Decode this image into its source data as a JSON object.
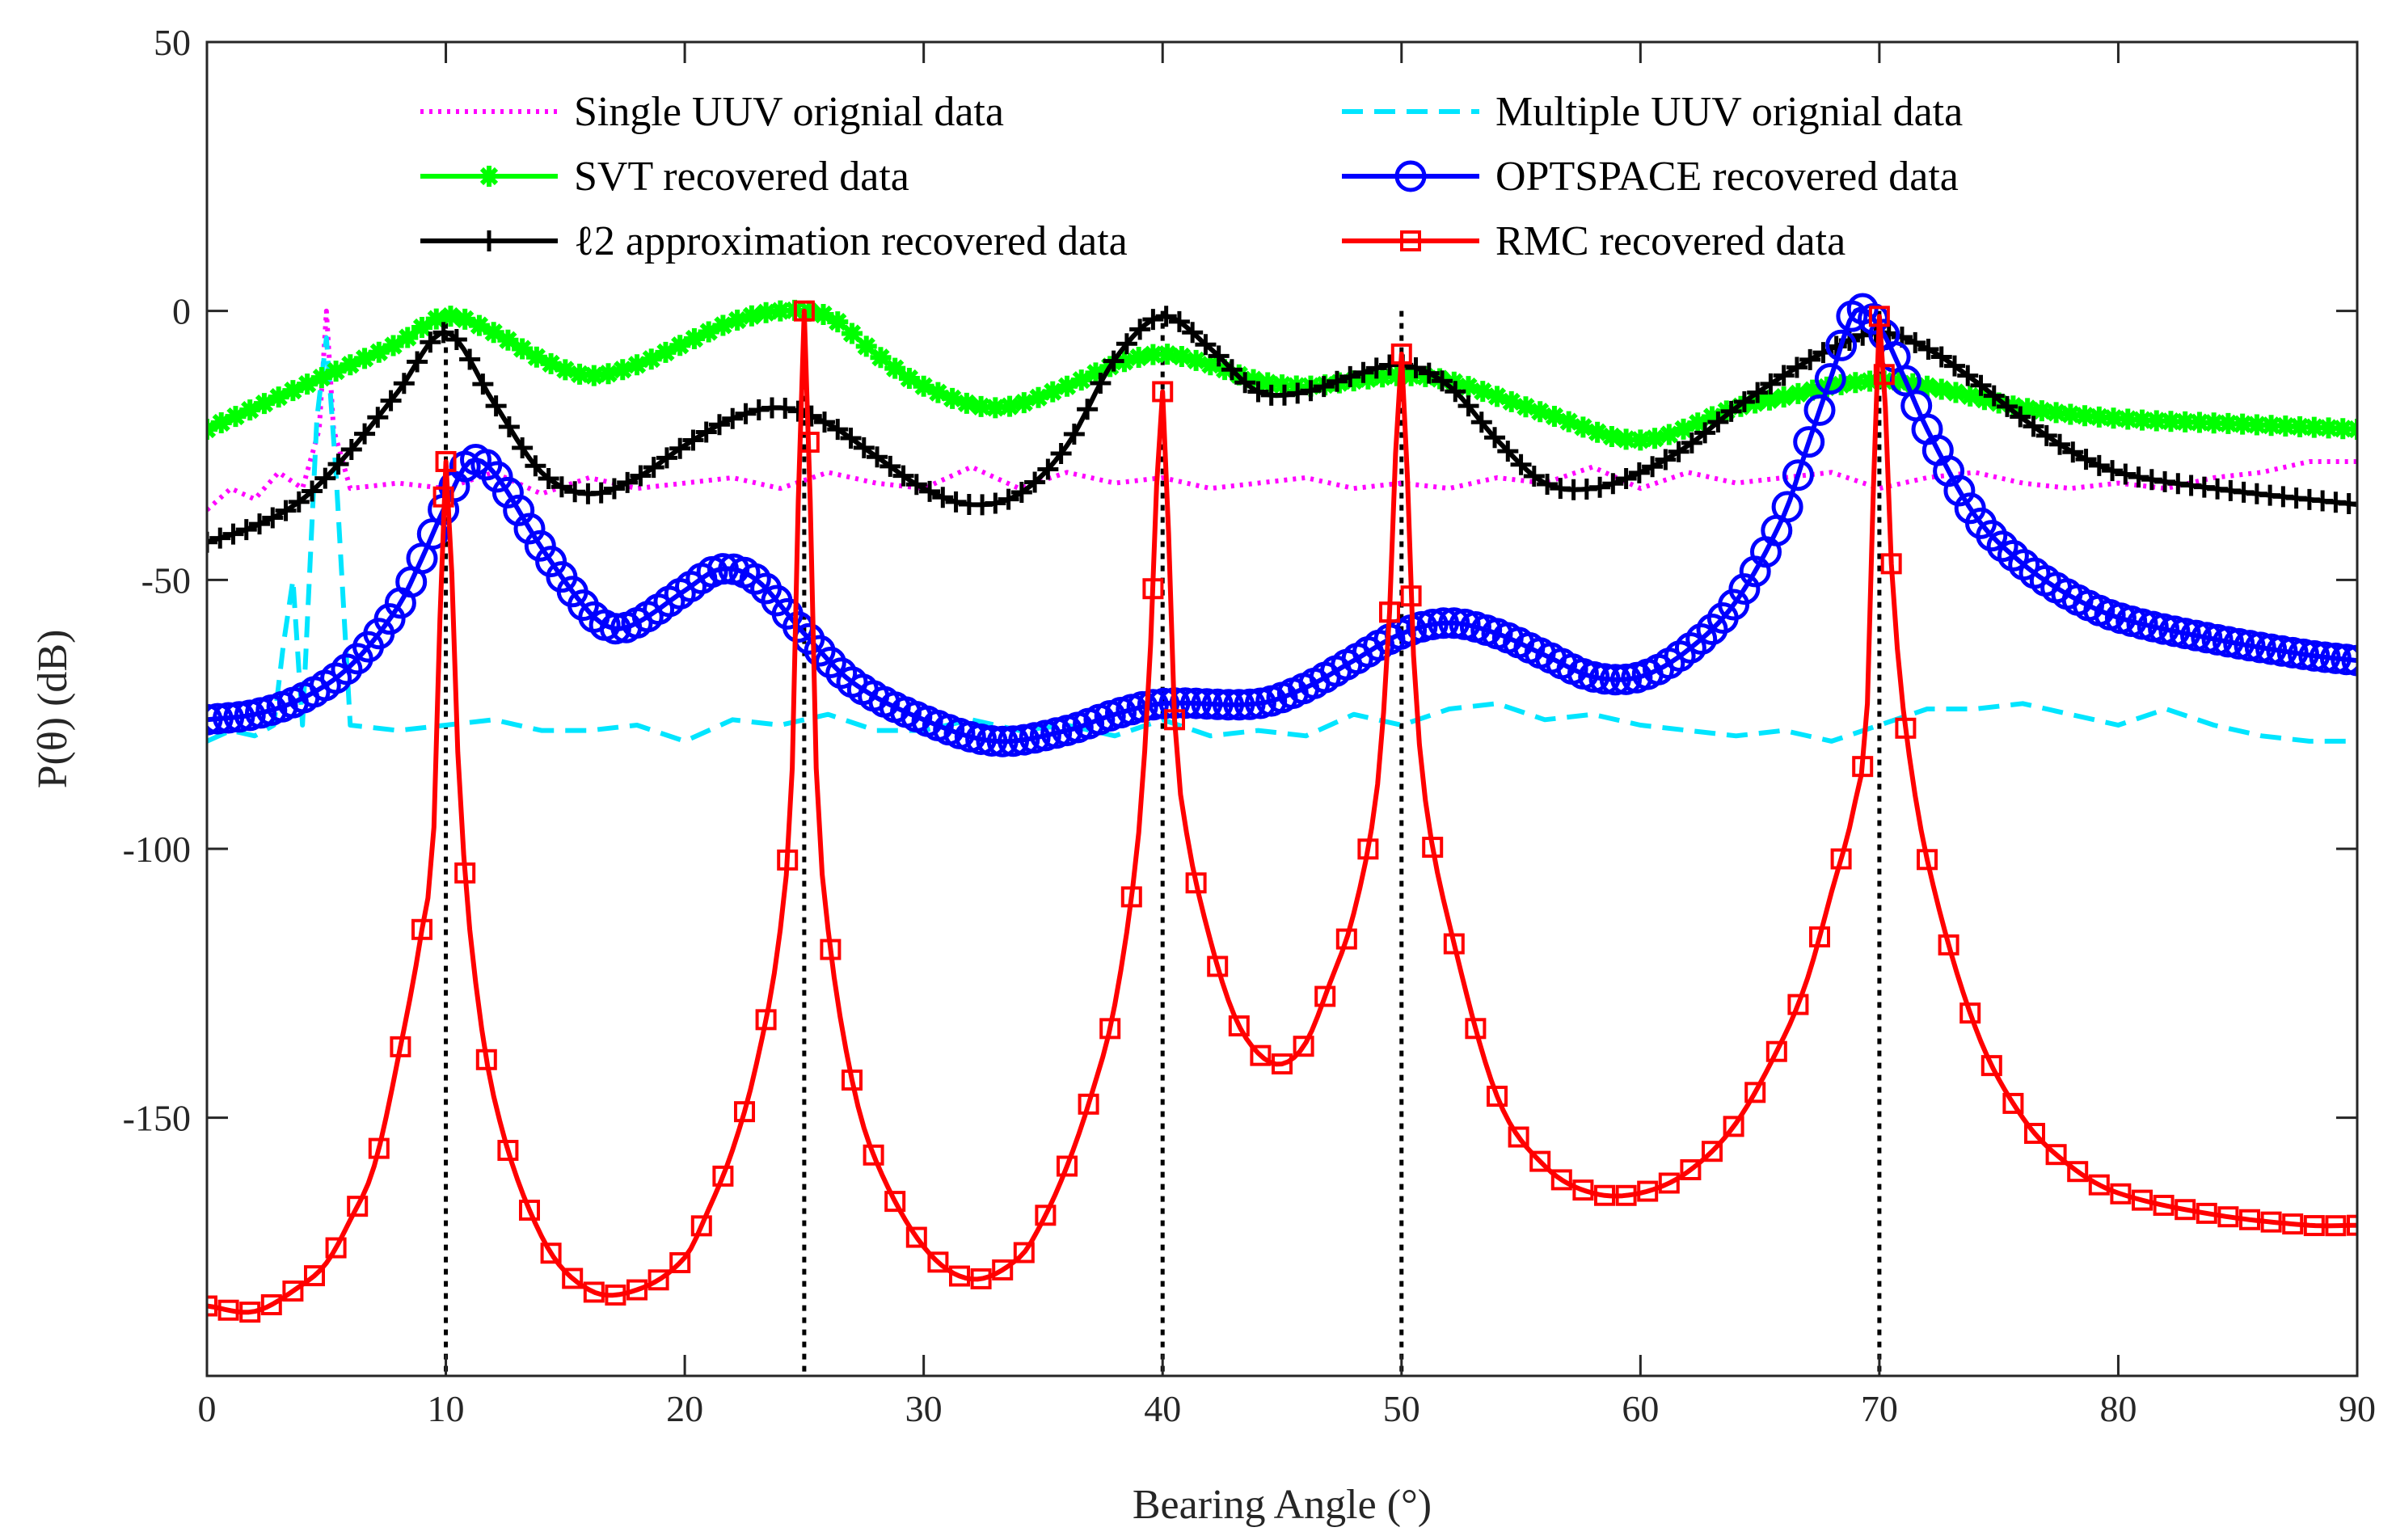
{
  "chart_data": {
    "type": "line",
    "xlabel": "Bearing Angle (°)",
    "ylabel": "P(θ) (dB)",
    "xlim": [
      0,
      90
    ],
    "ylim": [
      -198,
      50
    ],
    "xticks": [
      0,
      10,
      20,
      30,
      40,
      50,
      60,
      70,
      80,
      90
    ],
    "yticks": [
      50,
      0,
      -50,
      -100,
      -150
    ],
    "ytick_labels": [
      "50",
      "0",
      "-50",
      "-100",
      "-150"
    ],
    "grid": false,
    "legend_position": "top",
    "true_angles": [
      10,
      25,
      40,
      50,
      70
    ],
    "series": [
      {
        "name": "Single UUV orignial data",
        "color": "#ff00ff",
        "style": "dotted",
        "marker": "none",
        "points": [
          [
            0,
            -37
          ],
          [
            1,
            -33
          ],
          [
            2,
            -35
          ],
          [
            3,
            -30
          ],
          [
            4,
            -33
          ],
          [
            4.7,
            -22
          ],
          [
            5,
            0
          ],
          [
            5.3,
            -22
          ],
          [
            6,
            -33
          ],
          [
            8,
            -32
          ],
          [
            10,
            -33
          ],
          [
            12,
            -30
          ],
          [
            14,
            -34
          ],
          [
            16,
            -31
          ],
          [
            18,
            -33
          ],
          [
            20,
            -32
          ],
          [
            22,
            -31
          ],
          [
            24,
            -33
          ],
          [
            26,
            -30
          ],
          [
            28,
            -32
          ],
          [
            30,
            -33
          ],
          [
            32,
            -29
          ],
          [
            34,
            -33
          ],
          [
            36,
            -30
          ],
          [
            38,
            -32
          ],
          [
            40,
            -31
          ],
          [
            42,
            -33
          ],
          [
            44,
            -32
          ],
          [
            46,
            -31
          ],
          [
            48,
            -33
          ],
          [
            50,
            -32
          ],
          [
            52,
            -33
          ],
          [
            54,
            -31
          ],
          [
            56,
            -32
          ],
          [
            58,
            -29
          ],
          [
            60,
            -33
          ],
          [
            62,
            -30
          ],
          [
            64,
            -32
          ],
          [
            66,
            -31
          ],
          [
            68,
            -30
          ],
          [
            70,
            -33
          ],
          [
            72,
            -31
          ],
          [
            74,
            -30
          ],
          [
            76,
            -32
          ],
          [
            78,
            -33
          ],
          [
            80,
            -32
          ],
          [
            82,
            -33
          ],
          [
            84,
            -31
          ],
          [
            86,
            -30
          ],
          [
            88,
            -28
          ],
          [
            90,
            -28
          ]
        ]
      },
      {
        "name": "Multiple UUV orignial data",
        "color": "#00e5ff",
        "style": "dashed",
        "marker": "none",
        "points": [
          [
            0,
            -80
          ],
          [
            1,
            -78
          ],
          [
            2,
            -79
          ],
          [
            2.8,
            -77
          ],
          [
            3.2,
            -62
          ],
          [
            3.6,
            -50
          ],
          [
            4,
            -77
          ],
          [
            4.6,
            -20
          ],
          [
            5,
            -5
          ],
          [
            5.4,
            -30
          ],
          [
            6,
            -77
          ],
          [
            8,
            -78
          ],
          [
            10,
            -77
          ],
          [
            12,
            -76
          ],
          [
            14,
            -78
          ],
          [
            16,
            -78
          ],
          [
            18,
            -77
          ],
          [
            20,
            -80
          ],
          [
            22,
            -76
          ],
          [
            24,
            -77
          ],
          [
            26,
            -75
          ],
          [
            28,
            -78
          ],
          [
            30,
            -78
          ],
          [
            32,
            -76
          ],
          [
            34,
            -78
          ],
          [
            36,
            -77
          ],
          [
            38,
            -79
          ],
          [
            40,
            -76
          ],
          [
            42,
            -79
          ],
          [
            44,
            -78
          ],
          [
            46,
            -79
          ],
          [
            48,
            -75
          ],
          [
            50,
            -77
          ],
          [
            52,
            -74
          ],
          [
            54,
            -73
          ],
          [
            56,
            -76
          ],
          [
            58,
            -75
          ],
          [
            60,
            -77
          ],
          [
            62,
            -78
          ],
          [
            64,
            -79
          ],
          [
            66,
            -78
          ],
          [
            68,
            -80
          ],
          [
            70,
            -77
          ],
          [
            72,
            -74
          ],
          [
            74,
            -74
          ],
          [
            76,
            -73
          ],
          [
            78,
            -75
          ],
          [
            80,
            -77
          ],
          [
            82,
            -74
          ],
          [
            84,
            -77
          ],
          [
            86,
            -79
          ],
          [
            88,
            -80
          ],
          [
            90,
            -80
          ]
        ]
      },
      {
        "name": "SVT recovered data",
        "color": "#00ff00",
        "style": "solid",
        "marker": "star",
        "points": [
          [
            0,
            -22
          ],
          [
            2,
            -18
          ],
          [
            4,
            -14
          ],
          [
            6,
            -10
          ],
          [
            8,
            -6
          ],
          [
            10,
            -1
          ],
          [
            12,
            -4
          ],
          [
            14,
            -9
          ],
          [
            16,
            -12
          ],
          [
            18,
            -10
          ],
          [
            20,
            -6
          ],
          [
            22,
            -2
          ],
          [
            24,
            0
          ],
          [
            26,
            -1
          ],
          [
            28,
            -8
          ],
          [
            30,
            -14
          ],
          [
            33,
            -18
          ],
          [
            36,
            -14
          ],
          [
            38,
            -10
          ],
          [
            40,
            -8
          ],
          [
            42,
            -10
          ],
          [
            44,
            -13
          ],
          [
            46,
            -14
          ],
          [
            48,
            -13
          ],
          [
            50,
            -12
          ],
          [
            52,
            -13
          ],
          [
            56,
            -19
          ],
          [
            60,
            -24
          ],
          [
            64,
            -18
          ],
          [
            66,
            -16
          ],
          [
            68,
            -14
          ],
          [
            70,
            -13
          ],
          [
            72,
            -14
          ],
          [
            76,
            -18
          ],
          [
            80,
            -20
          ],
          [
            85,
            -21
          ],
          [
            90,
            -22
          ]
        ]
      },
      {
        "name": "ℓ2 approximation recovered data",
        "color": "#000000",
        "style": "solid",
        "marker": "plus",
        "points": [
          [
            0,
            -43
          ],
          [
            2,
            -40
          ],
          [
            4,
            -35
          ],
          [
            6,
            -26
          ],
          [
            8,
            -15
          ],
          [
            10,
            -4
          ],
          [
            12,
            -17
          ],
          [
            14,
            -30
          ],
          [
            16,
            -34
          ],
          [
            18,
            -31
          ],
          [
            20,
            -25
          ],
          [
            22,
            -20
          ],
          [
            24,
            -18
          ],
          [
            26,
            -21
          ],
          [
            28,
            -27
          ],
          [
            30,
            -33
          ],
          [
            32,
            -36
          ],
          [
            34,
            -34
          ],
          [
            36,
            -25
          ],
          [
            38,
            -9
          ],
          [
            40,
            -1
          ],
          [
            42,
            -7
          ],
          [
            44,
            -15
          ],
          [
            46,
            -15
          ],
          [
            48,
            -12
          ],
          [
            50,
            -10
          ],
          [
            52,
            -14
          ],
          [
            54,
            -24
          ],
          [
            56,
            -32
          ],
          [
            58,
            -33
          ],
          [
            60,
            -30
          ],
          [
            62,
            -25
          ],
          [
            64,
            -18
          ],
          [
            66,
            -12
          ],
          [
            68,
            -7
          ],
          [
            70,
            -4
          ],
          [
            72,
            -7
          ],
          [
            74,
            -13
          ],
          [
            76,
            -20
          ],
          [
            78,
            -26
          ],
          [
            80,
            -30
          ],
          [
            84,
            -33
          ],
          [
            90,
            -36
          ]
        ]
      },
      {
        "name": "OPTSPACE recovered data",
        "color": "#0000ff",
        "style": "solid",
        "marker": "circle",
        "points": [
          [
            0,
            -76
          ],
          [
            2,
            -75
          ],
          [
            4,
            -72
          ],
          [
            6,
            -66
          ],
          [
            8,
            -55
          ],
          [
            9,
            -46
          ],
          [
            10,
            -36
          ],
          [
            11,
            -28
          ],
          [
            12,
            -30
          ],
          [
            14,
            -44
          ],
          [
            16,
            -56
          ],
          [
            17,
            -59
          ],
          [
            18,
            -58
          ],
          [
            20,
            -52
          ],
          [
            21.5,
            -48
          ],
          [
            23,
            -50
          ],
          [
            25,
            -60
          ],
          [
            27,
            -69
          ],
          [
            30,
            -76
          ],
          [
            33,
            -80
          ],
          [
            36,
            -78
          ],
          [
            38,
            -75
          ],
          [
            40,
            -73
          ],
          [
            44,
            -73
          ],
          [
            46,
            -70
          ],
          [
            48,
            -65
          ],
          [
            50,
            -60
          ],
          [
            52,
            -58
          ],
          [
            54,
            -60
          ],
          [
            56,
            -64
          ],
          [
            58,
            -68
          ],
          [
            60,
            -68
          ],
          [
            62,
            -63
          ],
          [
            64,
            -54
          ],
          [
            66,
            -38
          ],
          [
            67,
            -25
          ],
          [
            68,
            -12
          ],
          [
            69,
            0
          ],
          [
            70,
            -3
          ],
          [
            71,
            -12
          ],
          [
            72,
            -22
          ],
          [
            74,
            -38
          ],
          [
            76,
            -47
          ],
          [
            78,
            -53
          ],
          [
            80,
            -57
          ],
          [
            84,
            -61
          ],
          [
            88,
            -64
          ],
          [
            90,
            -65
          ]
        ]
      },
      {
        "name": "RMC recovered data",
        "color": "#ff0000",
        "style": "solid",
        "marker": "square",
        "points": [
          [
            0,
            -185
          ],
          [
            2,
            -186
          ],
          [
            4,
            -181
          ],
          [
            5,
            -177
          ],
          [
            6,
            -169
          ],
          [
            7,
            -159
          ],
          [
            8,
            -139
          ],
          [
            9,
            -115
          ],
          [
            9.5,
            -96
          ],
          [
            10,
            -28
          ],
          [
            10.5,
            -82
          ],
          [
            11,
            -115
          ],
          [
            12,
            -146
          ],
          [
            14,
            -172
          ],
          [
            16,
            -182
          ],
          [
            18,
            -182
          ],
          [
            20,
            -176
          ],
          [
            21,
            -167
          ],
          [
            22,
            -156
          ],
          [
            23,
            -140
          ],
          [
            24,
            -115
          ],
          [
            24.5,
            -85
          ],
          [
            25,
            0
          ],
          [
            25.5,
            -85
          ],
          [
            26,
            -115
          ],
          [
            27,
            -143
          ],
          [
            28,
            -158
          ],
          [
            30,
            -174
          ],
          [
            32,
            -180
          ],
          [
            34,
            -176
          ],
          [
            35,
            -169
          ],
          [
            36,
            -159
          ],
          [
            37,
            -146
          ],
          [
            38,
            -129
          ],
          [
            39,
            -97
          ],
          [
            39.5,
            -62
          ],
          [
            40,
            -15
          ],
          [
            40.5,
            -76
          ],
          [
            41,
            -97
          ],
          [
            42,
            -117
          ],
          [
            43,
            -131
          ],
          [
            44,
            -138
          ],
          [
            45,
            -140
          ],
          [
            46,
            -136
          ],
          [
            47,
            -125
          ],
          [
            48,
            -112
          ],
          [
            49,
            -88
          ],
          [
            49.5,
            -56
          ],
          [
            50,
            -8
          ],
          [
            50.5,
            -64
          ],
          [
            51,
            -91
          ],
          [
            52,
            -114
          ],
          [
            54,
            -146
          ],
          [
            56,
            -159
          ],
          [
            58,
            -164
          ],
          [
            60,
            -164
          ],
          [
            62,
            -160
          ],
          [
            64,
            -151
          ],
          [
            66,
            -135
          ],
          [
            67,
            -124
          ],
          [
            68,
            -108
          ],
          [
            69,
            -91
          ],
          [
            69.5,
            -73
          ],
          [
            70,
            -1
          ],
          [
            70.5,
            -47
          ],
          [
            71,
            -74
          ],
          [
            72,
            -102
          ],
          [
            74,
            -133
          ],
          [
            76,
            -150
          ],
          [
            78,
            -159
          ],
          [
            80,
            -164
          ],
          [
            84,
            -168
          ],
          [
            88,
            -170
          ],
          [
            90,
            -170
          ]
        ]
      }
    ]
  }
}
